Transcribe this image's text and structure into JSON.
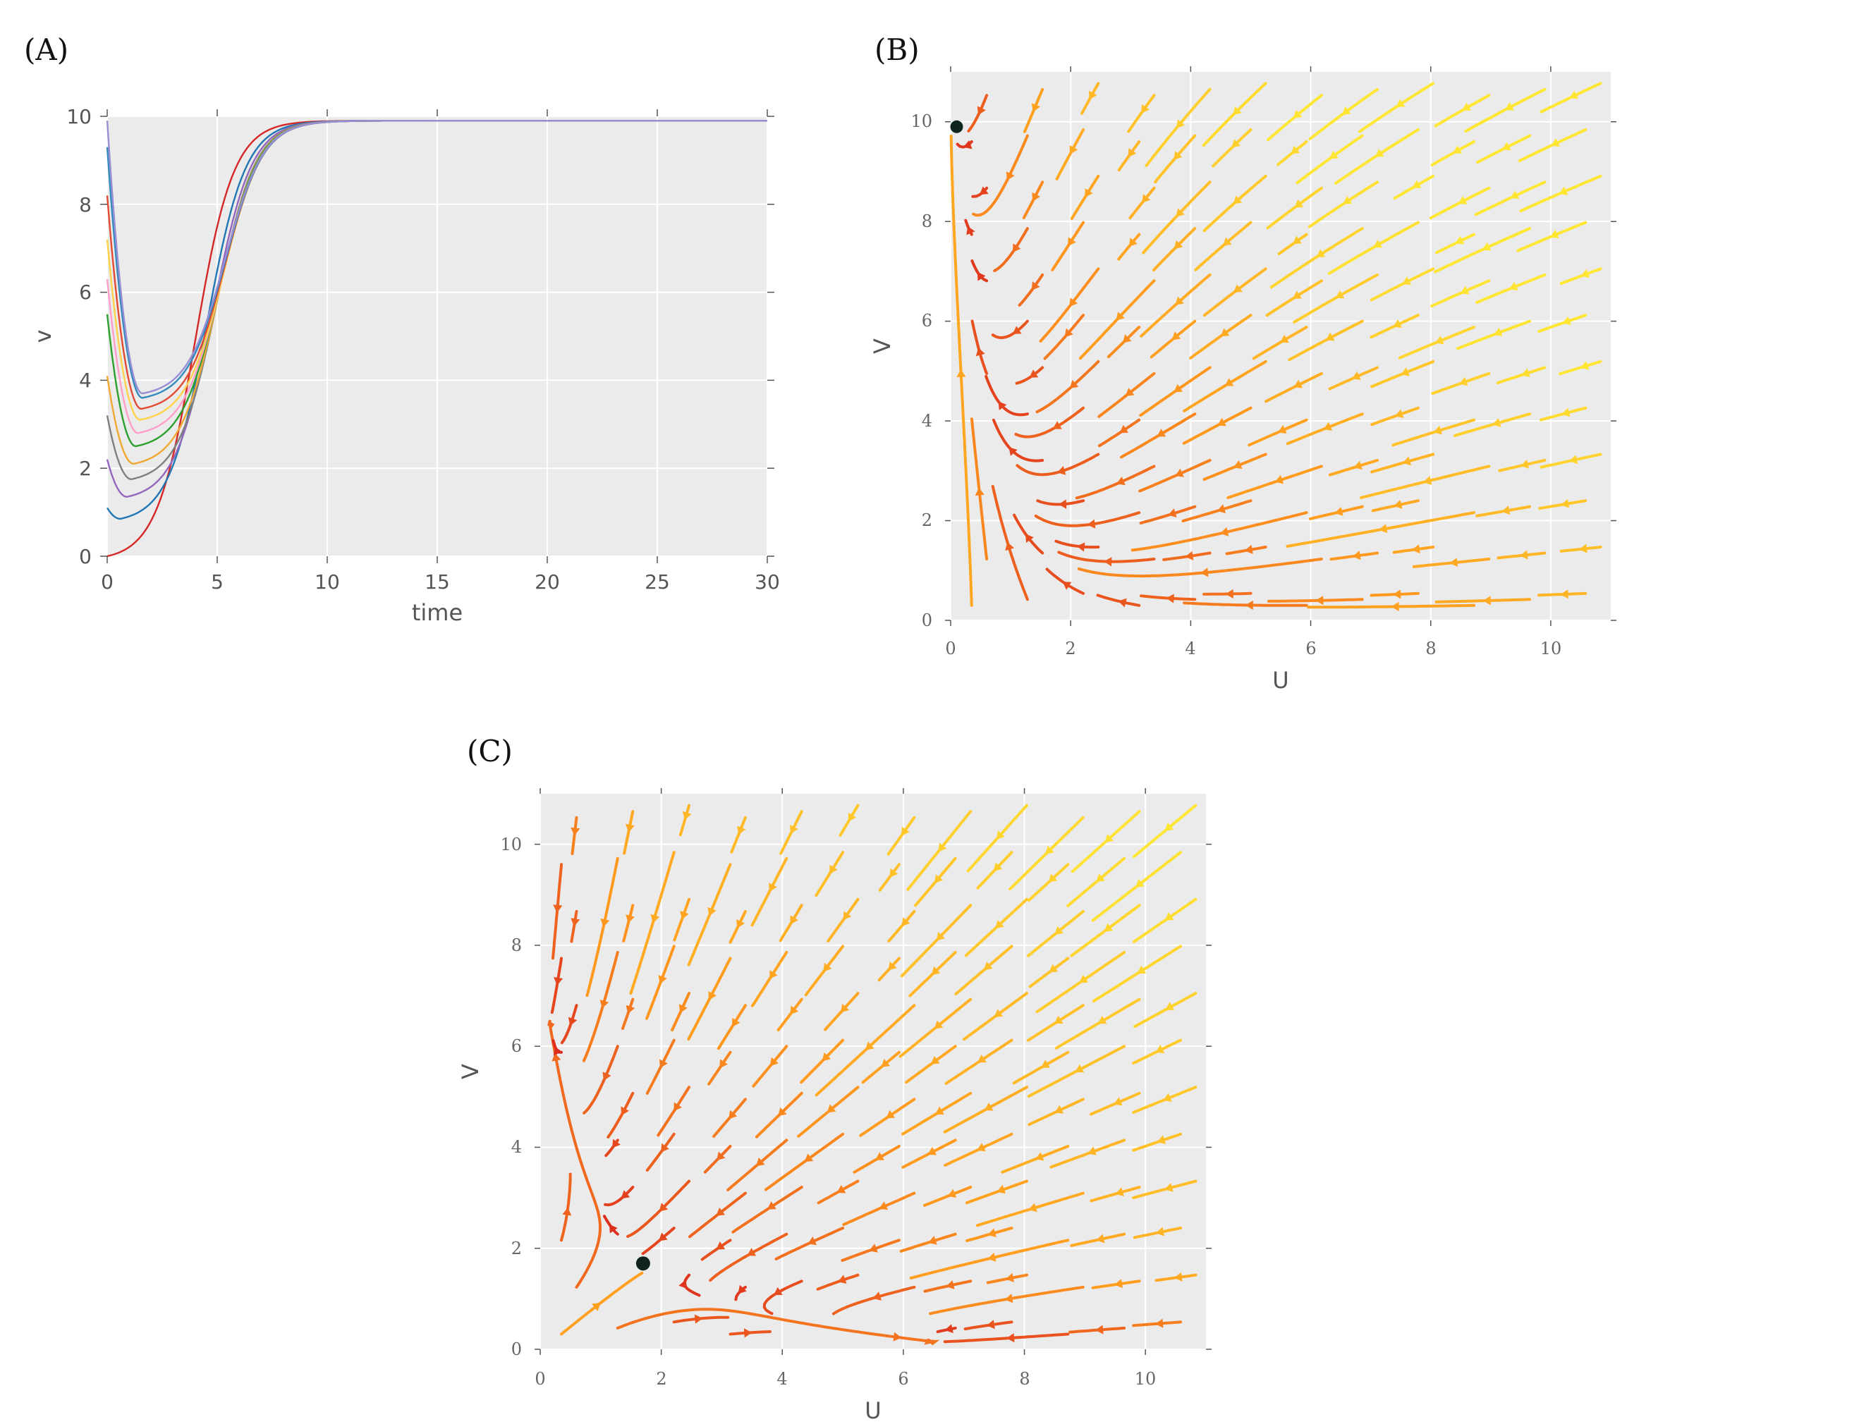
{
  "chart_data": [
    {
      "panel_label": "(A)",
      "type": "line",
      "xlabel": "time",
      "ylabel": "v",
      "xlim": [
        0,
        30
      ],
      "ylim": [
        0,
        10
      ],
      "xticks": [
        "0",
        "5",
        "10",
        "15",
        "20",
        "25",
        "30"
      ],
      "yticks": [
        "0",
        "2",
        "4",
        "6",
        "8",
        "10"
      ],
      "grid": true,
      "series": [
        {
          "color": "#d62728",
          "v0": 0.0,
          "min_v": 0.0,
          "t_min": 0.0
        },
        {
          "color": "#1f77b4",
          "v0": 1.1,
          "min_v": 0.85,
          "t_min": 0.6
        },
        {
          "color": "#9467bd",
          "v0": 2.2,
          "min_v": 1.35,
          "t_min": 0.9
        },
        {
          "color": "#7f7f7f",
          "v0": 3.2,
          "min_v": 1.75,
          "t_min": 1.1
        },
        {
          "color": "#f0a830",
          "v0": 4.1,
          "min_v": 2.1,
          "t_min": 1.2
        },
        {
          "color": "#2ca02c",
          "v0": 5.5,
          "min_v": 2.5,
          "t_min": 1.3
        },
        {
          "color": "#ff9ec8",
          "v0": 6.3,
          "min_v": 2.8,
          "t_min": 1.4
        },
        {
          "color": "#ffd24a",
          "v0": 7.2,
          "min_v": 3.1,
          "t_min": 1.5
        },
        {
          "color": "#e24a33",
          "v0": 8.2,
          "min_v": 3.35,
          "t_min": 1.55
        },
        {
          "color": "#348abd",
          "v0": 9.3,
          "min_v": 3.6,
          "t_min": 1.6
        },
        {
          "color": "#988ed5",
          "v0": 9.9,
          "min_v": 3.7,
          "t_min": 1.6
        }
      ],
      "steady_state": 9.9
    },
    {
      "panel_label": "(B)",
      "type": "streamplot",
      "xlabel": "U",
      "ylabel": "V",
      "xlim": [
        0,
        11
      ],
      "ylim": [
        0,
        11
      ],
      "xticks": [
        "0",
        "2",
        "4",
        "6",
        "8",
        "10"
      ],
      "yticks": [
        "0",
        "2",
        "4",
        "6",
        "8",
        "10"
      ],
      "fixed_point": {
        "x": 0.1,
        "y": 9.9
      },
      "colormap": [
        "#dc2a1e",
        "#ff9a1e",
        "#ffe633"
      ]
    },
    {
      "panel_label": "(C)",
      "type": "streamplot",
      "xlabel": "U",
      "ylabel": "V",
      "xlim": [
        0,
        11
      ],
      "ylim": [
        0,
        11
      ],
      "xticks": [
        "0",
        "2",
        "4",
        "6",
        "8",
        "10"
      ],
      "yticks": [
        "0",
        "2",
        "4",
        "6",
        "8",
        "10"
      ],
      "fixed_point": {
        "x": 1.7,
        "y": 1.7
      },
      "colormap": [
        "#dc2a1e",
        "#ff9a1e",
        "#ffe633"
      ]
    }
  ]
}
